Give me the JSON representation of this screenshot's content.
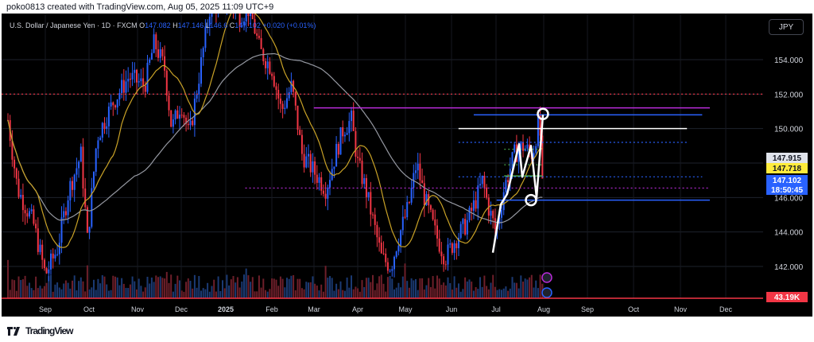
{
  "header": {
    "credit": "poko0813 created with TradingView.com, Aug 05, 2025 11:09 UTC+9"
  },
  "legend": {
    "instrument": "U.S. Dollar / Japanese Yen · 1D · FXCM",
    "o_label": "O",
    "o_value": "147.082",
    "h_label": "H",
    "h_value": "147.146",
    "l_label": "L",
    "l_value": "146.6",
    "c_label": "C",
    "c_value": "147.102",
    "change": "+0.020 (+0.01%)"
  },
  "currency_button": "JPY",
  "footer": {
    "logo_text": "TradingView"
  },
  "colors": {
    "background": "#000000",
    "up": "#2962ff",
    "down": "#f23645",
    "ma_fast": "#c9a227",
    "ma_slow": "#9598a1",
    "level_red": "#f23645",
    "level_magenta": "#b92bd9",
    "pattern_white": "#ffffff"
  },
  "chart_data": {
    "type": "candlestick",
    "symbol": "U.S. Dollar / Japanese Yen · 1D · FXCM",
    "x_ticks": [
      "Sep",
      "Oct",
      "Nov",
      "Dec",
      "2025",
      "Feb",
      "Mar",
      "Apr",
      "May",
      "Jun",
      "Jul",
      "Aug",
      "Sep",
      "Oct",
      "Nov",
      "Dec"
    ],
    "y_ticks": [
      "142.000",
      "144.000",
      "146.000",
      "148.000",
      "150.000",
      "152.000",
      "154.000"
    ],
    "ylim": [
      141.0,
      156.0
    ],
    "price_labels": [
      {
        "text": "147.915",
        "value": 147.915,
        "bg": "#e0e3eb",
        "fg": "#131722"
      },
      {
        "text": "147.718",
        "value": 147.718,
        "bg": "#ffeb3b",
        "fg": "#131722"
      },
      {
        "text": "147.102",
        "value": 147.102,
        "bg": "#2962ff",
        "fg": "#ffffff"
      },
      {
        "text": "18:50:45",
        "value": 146.6,
        "bg": "#2962ff",
        "fg": "#ffffff"
      }
    ],
    "volume_label": "43.19K",
    "series": [
      {
        "name": "MA fast",
        "color": "#c9a227"
      },
      {
        "name": "MA slow",
        "color": "#9598a1"
      }
    ],
    "horizontal_levels": [
      {
        "value": 152.0,
        "color": "#f23645",
        "style": "dotted",
        "from": 0.0,
        "to": 1.0
      },
      {
        "value": 151.2,
        "color": "#b92bd9",
        "style": "solid",
        "from": 0.41,
        "to": 0.93
      },
      {
        "value": 150.8,
        "color": "#2962ff",
        "style": "solid",
        "from": 0.62,
        "to": 0.92
      },
      {
        "value": 150.0,
        "color": "#ffffff",
        "style": "solid",
        "from": 0.6,
        "to": 0.9
      },
      {
        "value": 149.2,
        "color": "#2962ff",
        "style": "dotted",
        "from": 0.6,
        "to": 0.9
      },
      {
        "value": 148.8,
        "color": "#4caf50",
        "style": "dotted",
        "from": 0.66,
        "to": 0.71
      },
      {
        "value": 147.9,
        "color": "#4caf50",
        "style": "dotted",
        "from": 0.66,
        "to": 0.71
      },
      {
        "value": 147.25,
        "color": "#4caf50",
        "style": "solid",
        "from": 0.66,
        "to": 0.71
      },
      {
        "value": 147.2,
        "color": "#2962ff",
        "style": "dotted",
        "from": 0.6,
        "to": 0.92
      },
      {
        "value": 146.55,
        "color": "#b92bd9",
        "style": "dotted",
        "from": 0.32,
        "to": 0.93
      },
      {
        "value": 145.85,
        "color": "#2962ff",
        "style": "solid",
        "from": 0.65,
        "to": 0.93
      }
    ],
    "pattern_points": [
      {
        "label": "Jul",
        "value": 142.8
      },
      {
        "label": "Jul",
        "value": 145.6
      },
      {
        "label": "Jul",
        "value": 146.2
      },
      {
        "label": "Jul",
        "value": 149.1
      },
      {
        "label": "Jul",
        "value": 147.2
      },
      {
        "label": "Jul",
        "value": 149.0
      },
      {
        "label": "Aug",
        "value": 146.0
      },
      {
        "label": "Aug",
        "value": 150.8
      }
    ],
    "circle_markers": [
      {
        "label": "Jul end",
        "value": 145.85
      },
      {
        "label": "Aug 1",
        "value": 150.85
      }
    ],
    "monthly_closes": [
      {
        "month": "Sep 2024",
        "value": 143.6
      },
      {
        "month": "Oct 2024",
        "value": 152.0
      },
      {
        "month": "Nov 2024",
        "value": 149.8
      },
      {
        "month": "Dec 2024",
        "value": 157.2
      },
      {
        "month": "Jan 2025",
        "value": 154.9
      },
      {
        "month": "Feb 2025",
        "value": 150.6
      },
      {
        "month": "Mar 2025",
        "value": 149.9
      },
      {
        "month": "Apr 2025",
        "value": 143.1
      },
      {
        "month": "May 2025",
        "value": 144.0
      },
      {
        "month": "Jun 2025",
        "value": 144.0
      },
      {
        "month": "Jul 2025",
        "value": 150.7
      },
      {
        "month": "Aug 2025",
        "value": 147.1
      }
    ]
  }
}
